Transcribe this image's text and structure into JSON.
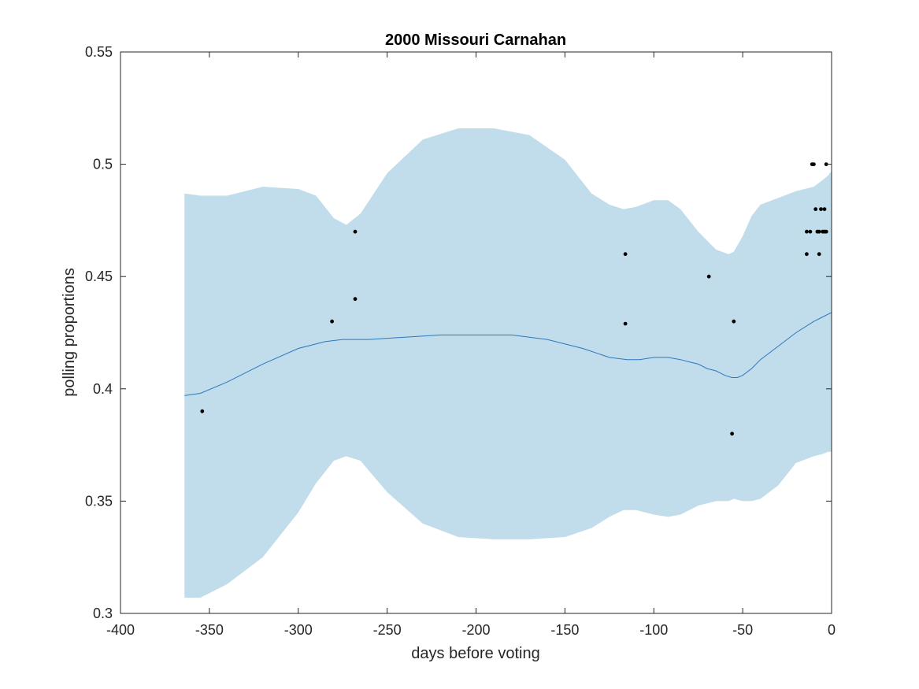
{
  "chart_data": {
    "type": "scatter",
    "title": "2000 Missouri Carnahan",
    "xlabel": "days before voting",
    "ylabel": "polling proportions",
    "xlim": [
      -400,
      0
    ],
    "ylim": [
      0.3,
      0.55
    ],
    "xticks": [
      {
        "value": -400,
        "label": "-400"
      },
      {
        "value": -350,
        "label": "-350"
      },
      {
        "value": -300,
        "label": "-300"
      },
      {
        "value": -250,
        "label": "-250"
      },
      {
        "value": -200,
        "label": "-200"
      },
      {
        "value": -150,
        "label": "-150"
      },
      {
        "value": -100,
        "label": "-100"
      },
      {
        "value": -50,
        "label": "-50"
      },
      {
        "value": 0,
        "label": "0"
      }
    ],
    "yticks": [
      {
        "value": 0.3,
        "label": "0.3"
      },
      {
        "value": 0.35,
        "label": "0.35"
      },
      {
        "value": 0.4,
        "label": "0.4"
      },
      {
        "value": 0.45,
        "label": "0.45"
      },
      {
        "value": 0.5,
        "label": "0.5"
      },
      {
        "value": 0.55,
        "label": "0.55"
      }
    ],
    "grid": false,
    "colors": {
      "band": "#c1dcea",
      "mean": "#2e78bd",
      "points": "#000000",
      "axes": "#262626"
    },
    "band": {
      "x": [
        -364,
        -355,
        -340,
        -320,
        -300,
        -290,
        -280,
        -273,
        -265,
        -250,
        -230,
        -210,
        -190,
        -170,
        -150,
        -135,
        -125,
        -117,
        -110,
        -100,
        -92,
        -85,
        -75,
        -65,
        -58,
        -55,
        -50,
        -45,
        -40,
        -30,
        -20,
        -10,
        -5,
        -2,
        0
      ],
      "upper": [
        0.487,
        0.486,
        0.486,
        0.49,
        0.489,
        0.486,
        0.476,
        0.473,
        0.478,
        0.496,
        0.511,
        0.516,
        0.516,
        0.513,
        0.502,
        0.487,
        0.482,
        0.48,
        0.481,
        0.484,
        0.484,
        0.48,
        0.47,
        0.462,
        0.46,
        0.461,
        0.468,
        0.477,
        0.482,
        0.485,
        0.488,
        0.49,
        0.493,
        0.495,
        0.497
      ],
      "lower": [
        0.307,
        0.307,
        0.313,
        0.325,
        0.345,
        0.358,
        0.368,
        0.37,
        0.368,
        0.354,
        0.34,
        0.334,
        0.333,
        0.333,
        0.334,
        0.338,
        0.343,
        0.346,
        0.346,
        0.344,
        0.343,
        0.344,
        0.348,
        0.35,
        0.35,
        0.351,
        0.35,
        0.35,
        0.351,
        0.357,
        0.367,
        0.37,
        0.371,
        0.372,
        0.372
      ]
    },
    "mean": {
      "x": [
        -364,
        -355,
        -340,
        -320,
        -300,
        -285,
        -275,
        -260,
        -240,
        -220,
        -200,
        -180,
        -160,
        -140,
        -125,
        -115,
        -108,
        -100,
        -92,
        -85,
        -80,
        -75,
        -70,
        -65,
        -60,
        -56,
        -53,
        -50,
        -45,
        -40,
        -30,
        -20,
        -10,
        -5,
        0
      ],
      "y": [
        0.397,
        0.398,
        0.403,
        0.411,
        0.418,
        0.421,
        0.422,
        0.422,
        0.423,
        0.424,
        0.424,
        0.424,
        0.422,
        0.418,
        0.414,
        0.413,
        0.413,
        0.414,
        0.414,
        0.413,
        0.412,
        0.411,
        0.409,
        0.408,
        0.406,
        0.405,
        0.405,
        0.406,
        0.409,
        0.413,
        0.419,
        0.425,
        0.43,
        0.432,
        0.434
      ]
    },
    "points": [
      {
        "x": -354,
        "y": 0.39
      },
      {
        "x": -281,
        "y": 0.43
      },
      {
        "x": -268,
        "y": 0.44
      },
      {
        "x": -268,
        "y": 0.47
      },
      {
        "x": -116,
        "y": 0.46
      },
      {
        "x": -116,
        "y": 0.429
      },
      {
        "x": -69,
        "y": 0.45
      },
      {
        "x": -56,
        "y": 0.38
      },
      {
        "x": -55,
        "y": 0.43
      },
      {
        "x": -14,
        "y": 0.47
      },
      {
        "x": -14,
        "y": 0.46
      },
      {
        "x": -12,
        "y": 0.47
      },
      {
        "x": -11,
        "y": 0.5
      },
      {
        "x": -10,
        "y": 0.5
      },
      {
        "x": -9,
        "y": 0.48
      },
      {
        "x": -8,
        "y": 0.47
      },
      {
        "x": -7,
        "y": 0.47
      },
      {
        "x": -7,
        "y": 0.46
      },
      {
        "x": -6,
        "y": 0.48
      },
      {
        "x": -5,
        "y": 0.47
      },
      {
        "x": -4,
        "y": 0.48
      },
      {
        "x": -4,
        "y": 0.47
      },
      {
        "x": -3,
        "y": 0.47
      },
      {
        "x": -3,
        "y": 0.5
      }
    ]
  }
}
